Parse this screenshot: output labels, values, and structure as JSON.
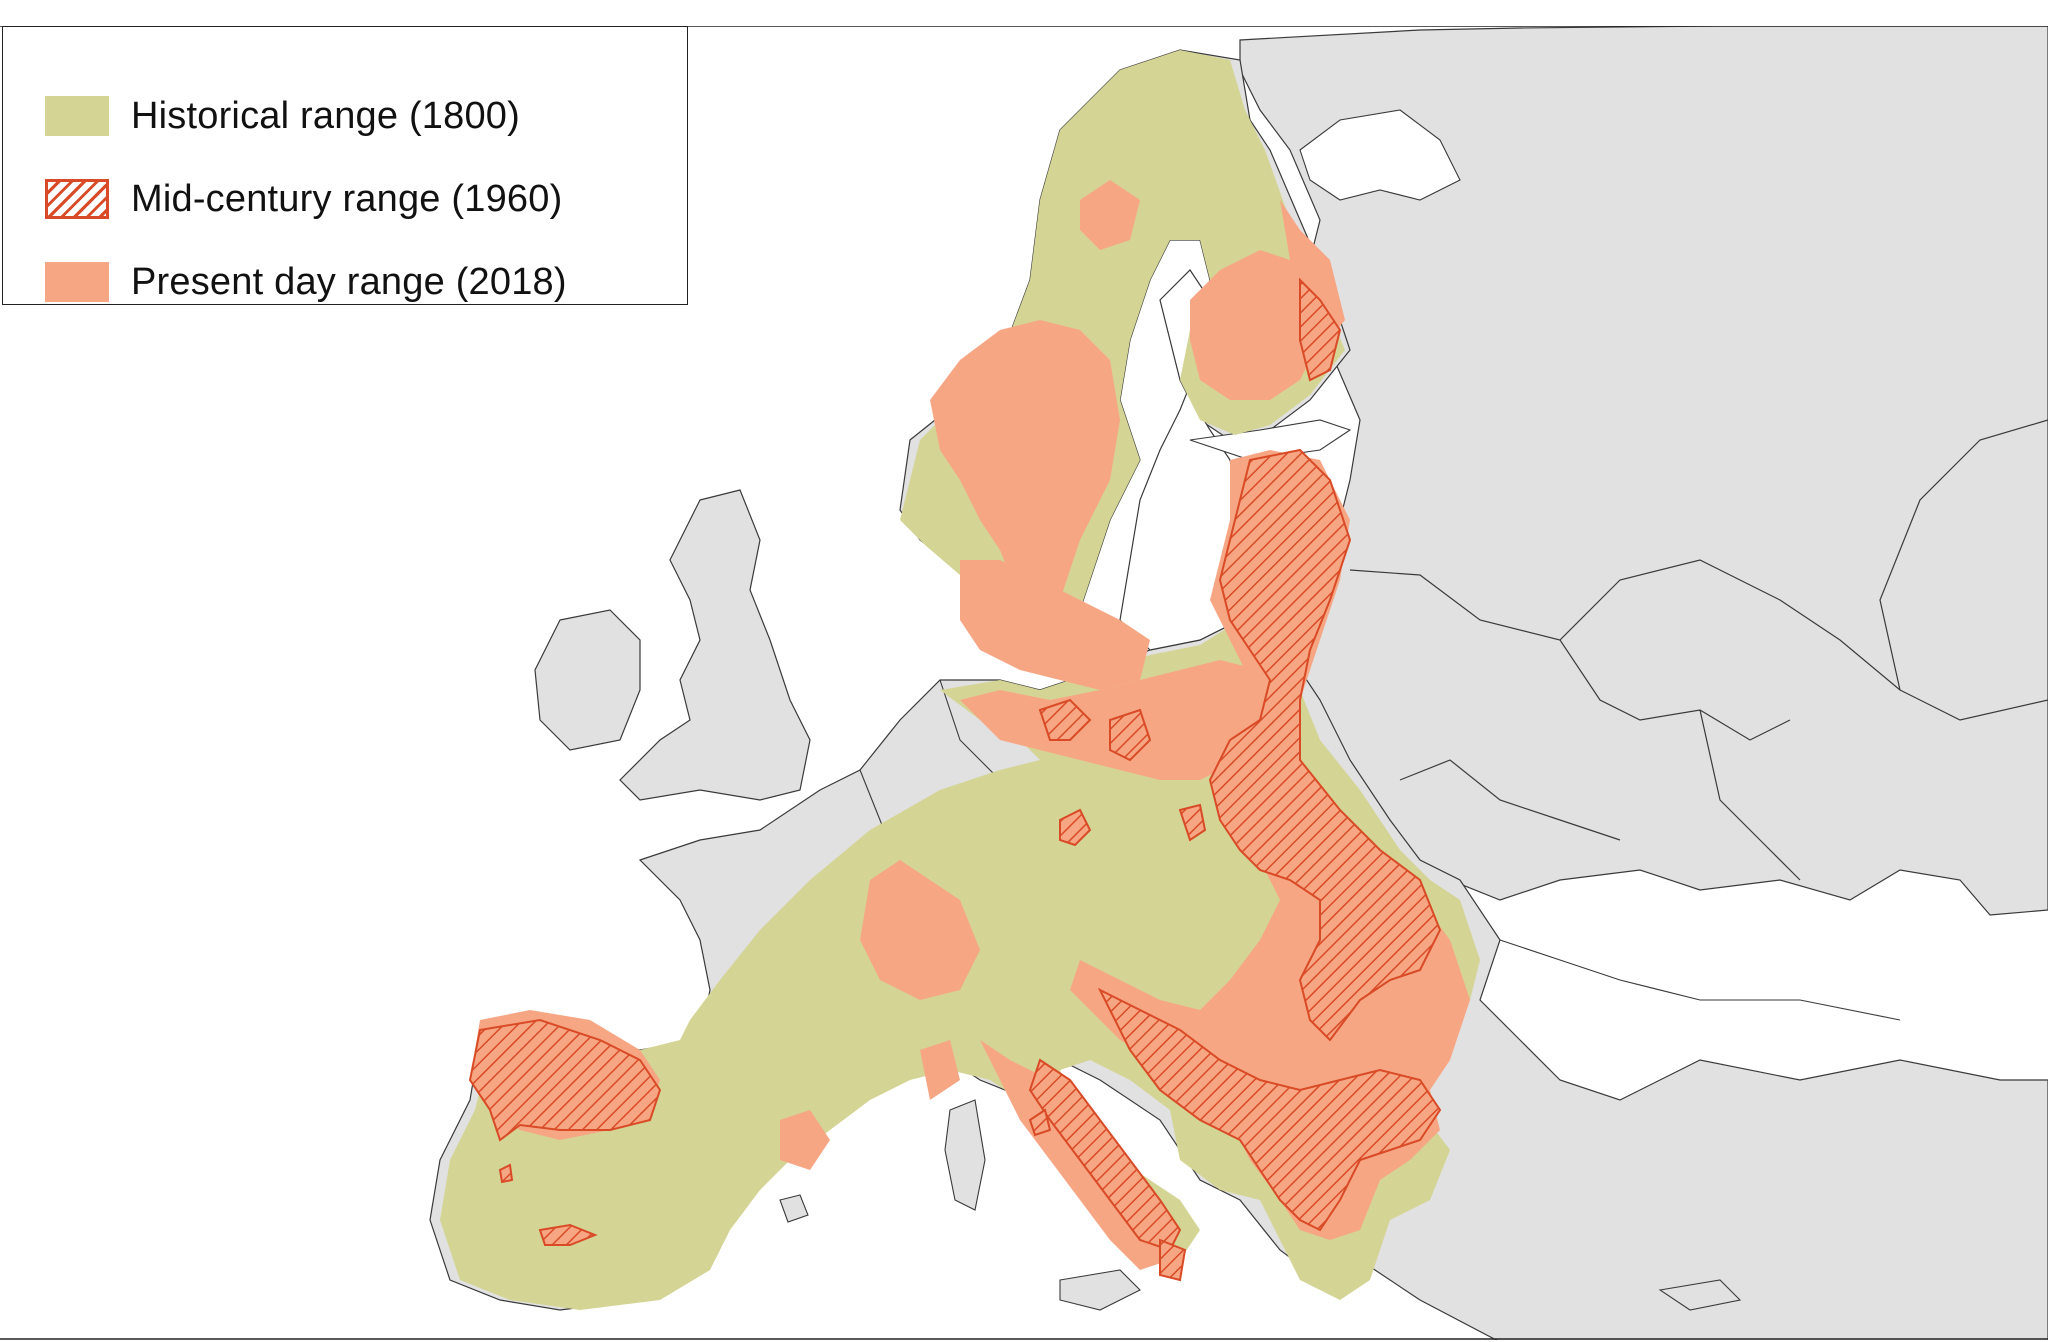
{
  "map": {
    "colors": {
      "sea": "#ffffff",
      "land": "#e1e1e1",
      "border": "#3a3a3a",
      "historical": "#d4d494",
      "present": "#f7a684",
      "midcentury": "#d94a26"
    },
    "legend": {
      "items": [
        {
          "key": "historical",
          "label": "Historical range (1800)",
          "swatch": "solid-green"
        },
        {
          "key": "midcentury",
          "label": "Mid-century range (1960)",
          "swatch": "hatched-red"
        },
        {
          "key": "present",
          "label": "Present day range (2018)",
          "swatch": "solid-salmon"
        }
      ]
    }
  }
}
